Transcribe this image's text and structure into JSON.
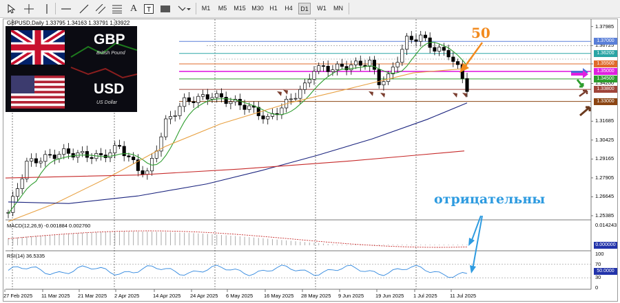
{
  "toolbar": {
    "timeframes": [
      "M1",
      "M5",
      "M15",
      "M30",
      "H1",
      "H4",
      "D1",
      "W1",
      "MN"
    ],
    "active_timeframe": "D1"
  },
  "chart": {
    "header": "GBPUSD,Daily  1.33795 1.34163 1.33791 1.33922",
    "base_currency": "GBP",
    "base_name": "British Pound",
    "quote_currency": "USD",
    "quote_name": "US Dollar",
    "price_axis_labels": [
      "1.37985",
      "1.36725",
      "1.35500",
      "1.34200",
      "1.31685",
      "1.30425",
      "1.29165",
      "1.27905",
      "1.26645",
      "1.25385"
    ],
    "levels": [
      {
        "value": "1.37000",
        "color": "#5a7fd8"
      },
      {
        "value": "1.36200",
        "color": "#2aa5a5"
      },
      {
        "value": "1.35500",
        "color": "#e06a2a"
      },
      {
        "value": "1.35000",
        "color": "#e020e0"
      },
      {
        "value": "1.34500",
        "color": "#2e9d2e"
      },
      {
        "value": "1.33800",
        "color": "#a0453a"
      },
      {
        "value": "1.33000",
        "color": "#8b4513"
      }
    ],
    "date_labels": [
      "27 Feb 2025",
      "11 Mar 2025",
      "21 Mar 2025",
      "2 Apr 2025",
      "14 Apr 2025",
      "24 Apr 2025",
      "6 May 2025",
      "16 May 2025",
      "28 May 2025",
      "9 Jun 2025",
      "19 Jun 2025",
      "1 Jul 2025",
      "11 Jul 2025"
    ],
    "annotation_ma": "50",
    "annotation_negative": "отрицательны"
  },
  "macd": {
    "header": "MACD(12,26,9) -0.001884 0.002760",
    "axis_top": "0.014243",
    "axis_zero": "0.000000"
  },
  "rsi": {
    "header": "RSI(14) 36.5335",
    "axis_labels": [
      "100",
      "70",
      "50.0000",
      "30",
      "0"
    ]
  },
  "colors": {
    "bull_candle": "#ffffff",
    "bear_candle": "#000000",
    "ma_fast": "#2e9d2e",
    "ma_50": "#e8a040",
    "ma_100": "#1a237e",
    "ma_200": "#c62828",
    "macd_signal": "#c62828",
    "rsi_line": "#2e86de"
  }
}
